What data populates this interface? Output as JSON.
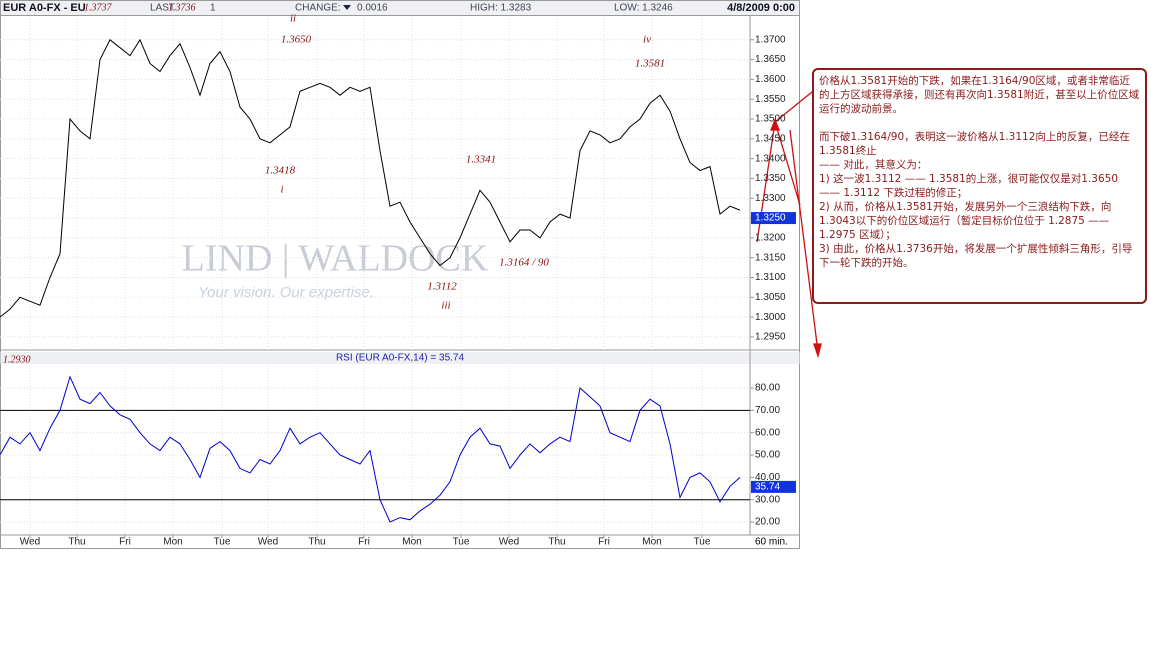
{
  "header": {
    "symbol": "EUR A0-FX - EU",
    "high_mark": "1.3737",
    "last_caption": "LAST",
    "last_value": "1.3736",
    "count": "1",
    "change_caption": "CHANGE:",
    "change_value": "0.0016",
    "high": "HIGH: 1.3283",
    "low": "LOW: 1.3246",
    "datetime": "4/8/2009 0:00",
    "low_mark": "1.2930"
  },
  "watermark": {
    "brand": "LIND | WALDOCK",
    "slogan": "Your vision. Our expertise."
  },
  "chart_data": [
    {
      "type": "line",
      "series": [
        {
          "name": "EUR A0-FX",
          "color": "#000000",
          "values": [
            1.3,
            1.302,
            1.305,
            1.304,
            1.303,
            1.31,
            1.316,
            1.35,
            1.347,
            1.345,
            1.365,
            1.37,
            1.368,
            1.366,
            1.37,
            1.364,
            1.362,
            1.366,
            1.369,
            1.363,
            1.356,
            1.364,
            1.367,
            1.362,
            1.353,
            1.35,
            1.345,
            1.344,
            1.346,
            1.348,
            1.357,
            1.358,
            1.359,
            1.358,
            1.356,
            1.358,
            1.357,
            1.358,
            1.342,
            1.328,
            1.329,
            1.324,
            1.32,
            1.316,
            1.313,
            1.315,
            1.32,
            1.326,
            1.332,
            1.329,
            1.324,
            1.319,
            1.322,
            1.322,
            1.32,
            1.324,
            1.326,
            1.325,
            1.342,
            1.347,
            1.346,
            1.344,
            1.345,
            1.348,
            1.35,
            1.354,
            1.356,
            1.352,
            1.345,
            1.339,
            1.337,
            1.338,
            1.326,
            1.328,
            1.327
          ]
        }
      ],
      "x": [
        0,
        1,
        2,
        3,
        4,
        5,
        6,
        7,
        8,
        9,
        10,
        11,
        12,
        13,
        14,
        15,
        16,
        17,
        18,
        19,
        20,
        21,
        22,
        23,
        24,
        25,
        26,
        27,
        28,
        29,
        30,
        31,
        32,
        33,
        34,
        35,
        36,
        37,
        38,
        39,
        40,
        41,
        42,
        43,
        44,
        45,
        46,
        47,
        48,
        49,
        50,
        51,
        52,
        53,
        54,
        55,
        56,
        57,
        58,
        59,
        60,
        61,
        62,
        63,
        64,
        65,
        66,
        67,
        68,
        69,
        70,
        71,
        72,
        73,
        74
      ],
      "xlim": [
        0,
        75
      ],
      "ylim": [
        1.2917,
        1.376
      ],
      "grid": true,
      "yticks": [
        {
          "value": 1.295,
          "label": "1.2950"
        },
        {
          "value": 1.3,
          "label": "1.3000"
        },
        {
          "value": 1.305,
          "label": "1.3050"
        },
        {
          "value": 1.31,
          "label": "1.3100"
        },
        {
          "value": 1.315,
          "label": "1.3150"
        },
        {
          "value": 1.32,
          "label": "1.3200"
        },
        {
          "value": 1.325,
          "label": "1.3250"
        },
        {
          "value": 1.33,
          "label": "1.3300"
        },
        {
          "value": 1.335,
          "label": "1.3350"
        },
        {
          "value": 1.34,
          "label": "1.3400"
        },
        {
          "value": 1.345,
          "label": "1.3450"
        },
        {
          "value": 1.35,
          "label": "1.3500"
        },
        {
          "value": 1.355,
          "label": "1.3550"
        },
        {
          "value": 1.36,
          "label": "1.3600"
        },
        {
          "value": 1.365,
          "label": "1.3650"
        },
        {
          "value": 1.37,
          "label": "1.3700"
        }
      ],
      "current": {
        "value": 1.325,
        "label": "1.3250"
      },
      "annotations": [
        "ii",
        "1.3650",
        "1.3418",
        "i",
        "1.3341",
        "1.3112",
        "iii",
        "1.3164 / 90",
        "iv",
        "1.3581"
      ]
    },
    {
      "type": "line",
      "title": "RSI (EUR A0-FX,14) = 35.74",
      "x_label": "60 min.",
      "series": [
        {
          "name": "RSI",
          "color": "#0000cc",
          "values": [
            50,
            58,
            55,
            60,
            52,
            62,
            70,
            85,
            75,
            73,
            78,
            72,
            68,
            66,
            60,
            55,
            52,
            58,
            55,
            48,
            40,
            53,
            56,
            52,
            44,
            42,
            48,
            46,
            52,
            62,
            55,
            58,
            60,
            55,
            50,
            48,
            46,
            52,
            30,
            20,
            22,
            21,
            25,
            28,
            32,
            38,
            50,
            58,
            62,
            55,
            54,
            44,
            50,
            55,
            51,
            55,
            58,
            56,
            80,
            76,
            72,
            60,
            58,
            56,
            70,
            75,
            72,
            55,
            31,
            40,
            42,
            38,
            29,
            36,
            40
          ]
        }
      ],
      "x": [
        0,
        1,
        2,
        3,
        4,
        5,
        6,
        7,
        8,
        9,
        10,
        11,
        12,
        13,
        14,
        15,
        16,
        17,
        18,
        19,
        20,
        21,
        22,
        23,
        24,
        25,
        26,
        27,
        28,
        29,
        30,
        31,
        32,
        33,
        34,
        35,
        36,
        37,
        38,
        39,
        40,
        41,
        42,
        43,
        44,
        45,
        46,
        47,
        48,
        49,
        50,
        51,
        52,
        53,
        54,
        55,
        56,
        57,
        58,
        59,
        60,
        61,
        62,
        63,
        64,
        65,
        66,
        67,
        68,
        69,
        70,
        71,
        72,
        73,
        74
      ],
      "xlim": [
        0,
        75
      ],
      "ylim": [
        14.2,
        90.3
      ],
      "grid": true,
      "levels": [
        70,
        30
      ],
      "yticks": [
        {
          "value": 20,
          "label": "20.00"
        },
        {
          "value": 30,
          "label": "30.00"
        },
        {
          "value": 40,
          "label": "40.00"
        },
        {
          "value": 50,
          "label": "50.00"
        },
        {
          "value": 60,
          "label": "60.00"
        },
        {
          "value": 70,
          "label": "70.00"
        },
        {
          "value": 80,
          "label": "80.00"
        }
      ],
      "xticks": [
        {
          "value": 3.0,
          "label": "Wed"
        },
        {
          "value": 7.7,
          "label": "Thu"
        },
        {
          "value": 12.5,
          "label": "Fri"
        },
        {
          "value": 17.3,
          "label": "Mon"
        },
        {
          "value": 22.2,
          "label": "Tue"
        },
        {
          "value": 26.8,
          "label": "Wed"
        },
        {
          "value": 31.7,
          "label": "Thu"
        },
        {
          "value": 36.4,
          "label": "Fri"
        },
        {
          "value": 41.2,
          "label": "Mon"
        },
        {
          "value": 46.1,
          "label": "Tue"
        },
        {
          "value": 50.9,
          "label": "Wed"
        },
        {
          "value": 55.7,
          "label": "Thu"
        },
        {
          "value": 60.4,
          "label": "Fri"
        },
        {
          "value": 65.2,
          "label": "Mon"
        },
        {
          "value": 70.2,
          "label": "Tue"
        }
      ],
      "current": {
        "value": 35.74,
        "label": "35.74"
      }
    }
  ],
  "note": {
    "paragraphs": [
      "价格从1.3581开始的下跌，如果在1.3164/90区域，或者非常临近的上方区域获得承接，则还有再次向1.3581附近，甚至以上价位区域运行的波动前景。",
      "而下破1.3164/90，表明这一波价格从1.3112向上的反复，已经在1.3581终止",
      "—— 对此，其意义为：",
      "1) 这一波1.3112 —— 1.3581的上涨，很可能仅仅是对1.3650 —— 1.3112 下跌过程的修正；",
      "2) 从而，价格从1.3581开始，发展另外一个三浪结构下跌，向1.3043以下的价位区域运行（暂定目标价位位于 1.2875 —— 1.2975 区域）；",
      "3) 由此，价格从1.3736开始，将发展一个扩展性倾斜三角形，引导下一轮下跌的开始。"
    ]
  }
}
